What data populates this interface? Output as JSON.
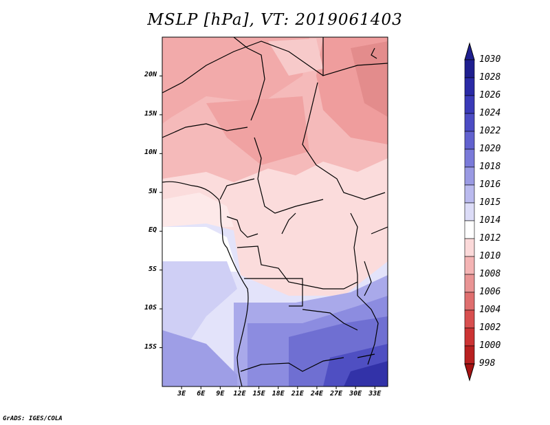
{
  "title": "MSLP [hPa], VT: 2019061403",
  "credit": "GrADS: IGES/COLA",
  "map": {
    "lon_range": [
      0,
      35
    ],
    "lat_range": [
      -20,
      25
    ],
    "lat_ticks": [
      {
        "value": 20,
        "label": "20N"
      },
      {
        "value": 15,
        "label": "15N"
      },
      {
        "value": 10,
        "label": "10N"
      },
      {
        "value": 5,
        "label": "5N"
      },
      {
        "value": 0,
        "label": "EQ"
      },
      {
        "value": -5,
        "label": "5S"
      },
      {
        "value": -10,
        "label": "10S"
      },
      {
        "value": -15,
        "label": "15S"
      }
    ],
    "lon_ticks": [
      {
        "value": 3,
        "label": "3E"
      },
      {
        "value": 6,
        "label": "6E"
      },
      {
        "value": 9,
        "label": "9E"
      },
      {
        "value": 12,
        "label": "12E"
      },
      {
        "value": 15,
        "label": "15E"
      },
      {
        "value": 18,
        "label": "18E"
      },
      {
        "value": 21,
        "label": "21E"
      },
      {
        "value": 24,
        "label": "24E"
      },
      {
        "value": 27,
        "label": "27E"
      },
      {
        "value": 30,
        "label": "30E"
      },
      {
        "value": 33,
        "label": "33E"
      }
    ]
  },
  "colorbar": {
    "levels": [
      "1030",
      "1028",
      "1026",
      "1024",
      "1022",
      "1020",
      "1018",
      "1016",
      "1015",
      "1014",
      "1012",
      "1010",
      "1008",
      "1006",
      "1004",
      "1002",
      "1000",
      "998"
    ],
    "colors": [
      "#1f1f8f",
      "#2a2aa6",
      "#3a3ab8",
      "#4c4cc4",
      "#6262cf",
      "#7a7ad9",
      "#9a9ae3",
      "#babaee",
      "#dcdcf7",
      "#ffffff",
      "#fbd9d9",
      "#f4b4b4",
      "#e99494",
      "#df6e6e",
      "#d84f4f",
      "#cc3333",
      "#b82020",
      "#a51212"
    ]
  }
}
